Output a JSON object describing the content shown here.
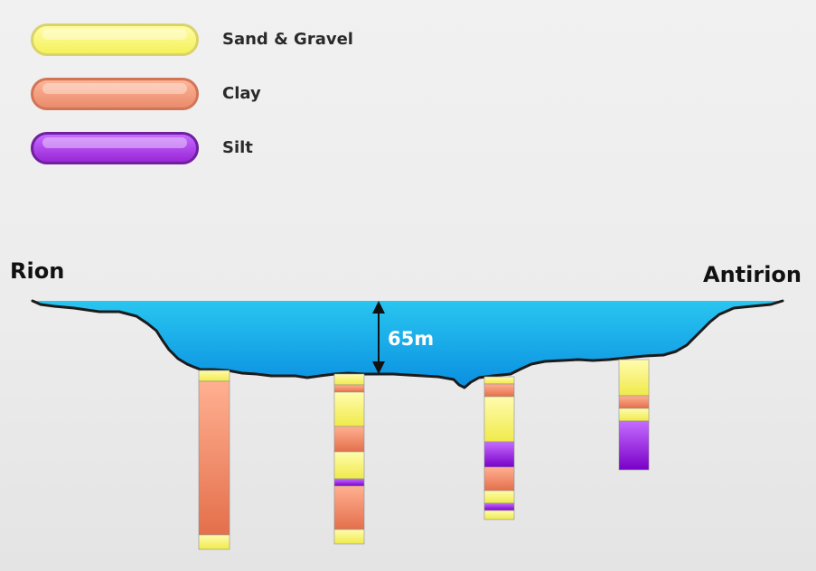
{
  "legend": [
    {
      "label": "Sand & Gravel",
      "key": "sand",
      "color": "#f4f15a",
      "border": "#d9d36a"
    },
    {
      "label": "Clay",
      "key": "clay",
      "color": "#e98c6c",
      "border": "#d27556"
    },
    {
      "label": "Silt",
      "key": "silt",
      "color": "#9a27d7",
      "border": "#6f1fa0"
    }
  ],
  "labels": {
    "left_shore": "Rion",
    "right_shore": "Antirion",
    "depth": "65m"
  },
  "colors": {
    "water_top": "#29c6f0",
    "water_bottom": "#0a8fe0",
    "seabed": "#1b1b1b"
  },
  "boreholes": [
    {
      "name": "borehole-1",
      "layers": [
        {
          "material": "sand",
          "thickness": 12
        },
        {
          "material": "clay",
          "thickness": 170
        },
        {
          "material": "sand",
          "thickness": 16
        }
      ]
    },
    {
      "name": "borehole-2",
      "layers": [
        {
          "material": "sand",
          "thickness": 12
        },
        {
          "material": "clay",
          "thickness": 8
        },
        {
          "material": "sand",
          "thickness": 38
        },
        {
          "material": "clay",
          "thickness": 28
        },
        {
          "material": "sand",
          "thickness": 30
        },
        {
          "material": "silt",
          "thickness": 8
        },
        {
          "material": "clay",
          "thickness": 48
        },
        {
          "material": "sand",
          "thickness": 16
        }
      ]
    },
    {
      "name": "borehole-3",
      "layers": [
        {
          "material": "sand",
          "thickness": 8
        },
        {
          "material": "clay",
          "thickness": 14
        },
        {
          "material": "sand",
          "thickness": 50
        },
        {
          "material": "silt",
          "thickness": 28
        },
        {
          "material": "clay",
          "thickness": 26
        },
        {
          "material": "sand",
          "thickness": 14
        },
        {
          "material": "silt",
          "thickness": 8
        },
        {
          "material": "sand",
          "thickness": 10
        }
      ]
    },
    {
      "name": "borehole-4",
      "layers": [
        {
          "material": "sand",
          "thickness": 40
        },
        {
          "material": "clay",
          "thickness": 14
        },
        {
          "material": "sand",
          "thickness": 14
        },
        {
          "material": "silt",
          "thickness": 54
        }
      ]
    }
  ]
}
